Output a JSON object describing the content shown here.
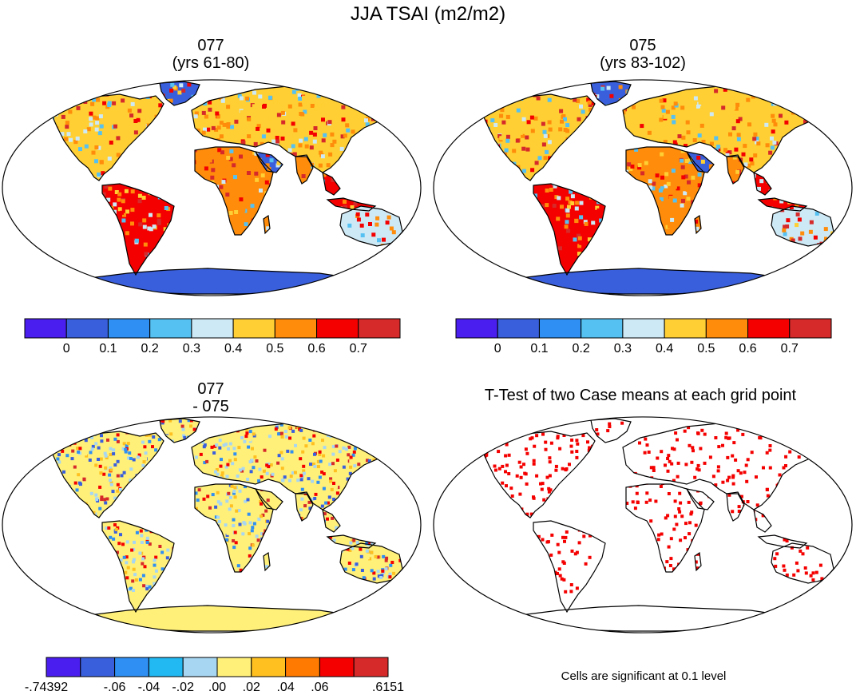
{
  "title": "JJA TSAI (m2/m2)",
  "panels": [
    {
      "id": "p077",
      "line1": "077",
      "line2": "(yrs 61-80)"
    },
    {
      "id": "p075",
      "line1": "075",
      "line2": "(yrs 83-102)"
    },
    {
      "id": "pdiff",
      "line1": "077",
      "line2": "- 075"
    },
    {
      "id": "pttest",
      "line1": "T-Test of two Case means at each grid point",
      "line2": ""
    }
  ],
  "colorbar_abs": {
    "colors": [
      "#4a1eee",
      "#3a5fdc",
      "#2f8ff2",
      "#55c1f2",
      "#cde9f6",
      "#ffcf33",
      "#ff8c0a",
      "#f40000",
      "#d62a2a"
    ],
    "labels": [
      "0",
      "0.1",
      "0.2",
      "0.3",
      "0.4",
      "0.5",
      "0.6",
      "0.7"
    ]
  },
  "colorbar_diff": {
    "colors": [
      "#4a1eee",
      "#3a5fdc",
      "#2f8ff2",
      "#22b8f2",
      "#a7d6f2",
      "#fff07a",
      "#ffc020",
      "#ff7a00",
      "#f40000",
      "#d62a2a"
    ],
    "labels": [
      "-.74392",
      "-.06",
      "-.04",
      "-.02",
      ".00",
      ".02",
      ".04",
      ".06",
      ".6151"
    ]
  },
  "footnote": "Cells are significant at 0.1 level",
  "colors": {
    "land_outline": "#000000",
    "ocean": "#ffffff",
    "antarctica_abs": "#3a5fdc",
    "antarctica_diff": "#fff07a",
    "signif": "#f40000"
  },
  "chart_data": [
    {
      "type": "heatmap",
      "title": "077 (yrs 61-80)",
      "variable": "JJA TSAI (m2/m2)",
      "color_levels": [
        0,
        0.1,
        0.2,
        0.3,
        0.4,
        0.5,
        0.6,
        0.7
      ]
    },
    {
      "type": "heatmap",
      "title": "075 (yrs 83-102)",
      "variable": "JJA TSAI (m2/m2)",
      "color_levels": [
        0,
        0.1,
        0.2,
        0.3,
        0.4,
        0.5,
        0.6,
        0.7
      ]
    },
    {
      "type": "heatmap",
      "title": "077 - 075",
      "variable": "JJA TSAI (m2/m2)",
      "color_levels": [
        -0.74392,
        -0.06,
        -0.04,
        -0.02,
        0.0,
        0.02,
        0.04,
        0.06,
        0.6151
      ]
    },
    {
      "type": "heatmap",
      "title": "T-Test of two Case means at each grid point",
      "significance_level": 0.1
    }
  ]
}
